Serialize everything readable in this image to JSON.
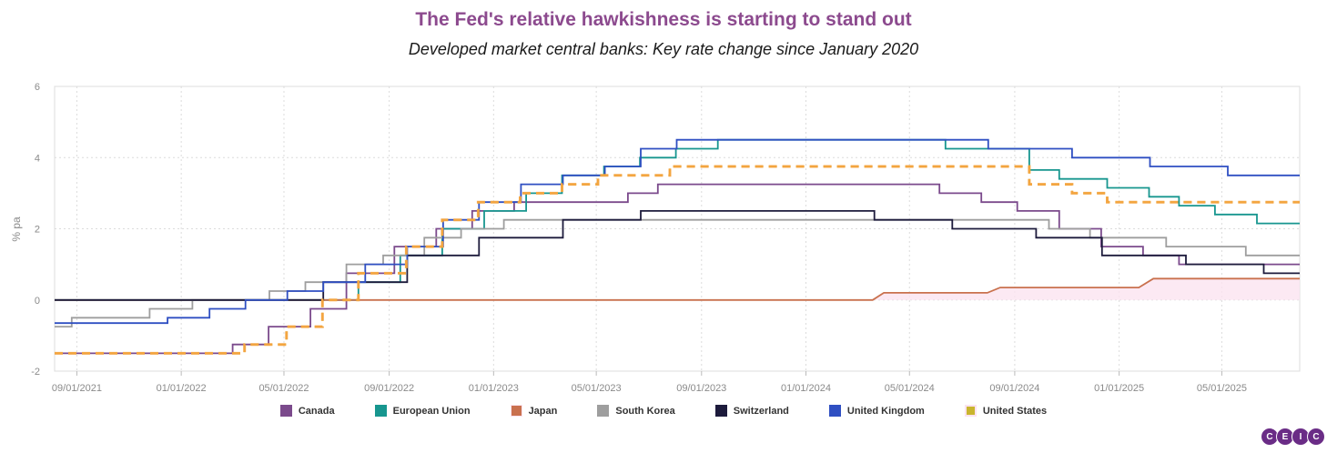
{
  "colors": {
    "title": "#8c4a8e",
    "grid": "#dcdcdc",
    "logo": "#6a2c86"
  },
  "logo": {
    "letters": [
      "C",
      "E",
      "I",
      "C"
    ]
  },
  "chart_data": {
    "type": "line",
    "title": "The Fed's relative hawkishness is starting to stand out",
    "subtitle": "Developed market central banks: Key rate change since January 2020",
    "ylabel": "% pa",
    "xlabel": "",
    "ylim": [
      -2,
      6
    ],
    "yticks": [
      -2,
      0,
      2,
      4,
      6
    ],
    "xlim": [
      "2021-08-06",
      "2025-07-31"
    ],
    "xticks": [
      "2021-09-01",
      "2022-01-01",
      "2022-05-01",
      "2022-09-01",
      "2023-01-01",
      "2023-05-01",
      "2023-09-01",
      "2024-01-01",
      "2024-05-01",
      "2024-09-01",
      "2025-01-01",
      "2025-05-01"
    ],
    "xtick_labels": [
      "09/01/2021",
      "01/01/2022",
      "05/01/2022",
      "09/01/2022",
      "01/01/2023",
      "05/01/2023",
      "09/01/2023",
      "01/01/2024",
      "05/01/2024",
      "09/01/2024",
      "01/01/2025",
      "05/01/2025"
    ],
    "grid": true,
    "legend_position": "bottom",
    "series": [
      {
        "name": "Canada",
        "color": "#7b4a8c",
        "dashed": false,
        "step": true,
        "points": [
          [
            "2021-08-06",
            -1.5
          ],
          [
            "2022-03-02",
            -1.25
          ],
          [
            "2022-04-13",
            -0.75
          ],
          [
            "2022-06-01",
            -0.25
          ],
          [
            "2022-07-13",
            0.75
          ],
          [
            "2022-09-07",
            1.5
          ],
          [
            "2022-10-26",
            2.0
          ],
          [
            "2022-12-07",
            2.5
          ],
          [
            "2023-01-25",
            2.75
          ],
          [
            "2023-06-07",
            3.0
          ],
          [
            "2023-07-12",
            3.25
          ],
          [
            "2024-06-05",
            3.0
          ],
          [
            "2024-07-24",
            2.75
          ],
          [
            "2024-09-04",
            2.5
          ],
          [
            "2024-10-23",
            2.0
          ],
          [
            "2024-12-11",
            1.5
          ],
          [
            "2025-01-29",
            1.25
          ],
          [
            "2025-03-12",
            1.0
          ],
          [
            "2025-07-31",
            1.0
          ]
        ]
      },
      {
        "name": "European Union",
        "color": "#17968f",
        "dashed": false,
        "step": true,
        "points": [
          [
            "2021-08-06",
            0
          ],
          [
            "2022-07-27",
            0.5
          ],
          [
            "2022-09-14",
            1.25
          ],
          [
            "2022-11-02",
            2.0
          ],
          [
            "2022-12-21",
            2.5
          ],
          [
            "2023-02-08",
            3.0
          ],
          [
            "2023-03-22",
            3.5
          ],
          [
            "2023-05-10",
            3.75
          ],
          [
            "2023-06-21",
            4.0
          ],
          [
            "2023-08-02",
            4.25
          ],
          [
            "2023-09-20",
            4.5
          ],
          [
            "2024-06-12",
            4.25
          ],
          [
            "2024-09-18",
            3.65
          ],
          [
            "2024-10-23",
            3.4
          ],
          [
            "2024-12-18",
            3.15
          ],
          [
            "2025-02-05",
            2.9
          ],
          [
            "2025-03-12",
            2.65
          ],
          [
            "2025-04-23",
            2.4
          ],
          [
            "2025-06-11",
            2.15
          ],
          [
            "2025-07-31",
            2.15
          ]
        ]
      },
      {
        "name": "Japan",
        "color": "#c9714e",
        "dashed": false,
        "step": false,
        "fill": "#fbe3f0",
        "points": [
          [
            "2021-08-06",
            0
          ],
          [
            "2024-03-19",
            0
          ],
          [
            "2024-04-01",
            0.2
          ],
          [
            "2024-07-31",
            0.2
          ],
          [
            "2024-08-15",
            0.35
          ],
          [
            "2025-01-24",
            0.35
          ],
          [
            "2025-02-10",
            0.6
          ],
          [
            "2025-07-31",
            0.6
          ]
        ]
      },
      {
        "name": "South Korea",
        "color": "#9e9e9e",
        "dashed": false,
        "step": true,
        "points": [
          [
            "2021-08-06",
            -0.75
          ],
          [
            "2021-08-26",
            -0.5
          ],
          [
            "2021-11-25",
            -0.25
          ],
          [
            "2022-01-14",
            0
          ],
          [
            "2022-04-14",
            0.25
          ],
          [
            "2022-05-26",
            0.5
          ],
          [
            "2022-07-13",
            1.0
          ],
          [
            "2022-08-25",
            1.25
          ],
          [
            "2022-10-12",
            1.75
          ],
          [
            "2022-11-24",
            2.0
          ],
          [
            "2023-01-13",
            2.25
          ],
          [
            "2024-10-11",
            2.0
          ],
          [
            "2024-11-28",
            1.75
          ],
          [
            "2025-02-25",
            1.5
          ],
          [
            "2025-05-29",
            1.25
          ],
          [
            "2025-07-31",
            1.25
          ]
        ]
      },
      {
        "name": "Switzerland",
        "color": "#1d1b3c",
        "dashed": false,
        "step": true,
        "points": [
          [
            "2021-08-06",
            0
          ],
          [
            "2022-06-16",
            0.5
          ],
          [
            "2022-09-22",
            1.25
          ],
          [
            "2022-12-15",
            1.75
          ],
          [
            "2023-03-23",
            2.25
          ],
          [
            "2023-06-22",
            2.5
          ],
          [
            "2024-03-21",
            2.25
          ],
          [
            "2024-06-20",
            2.0
          ],
          [
            "2024-09-26",
            1.75
          ],
          [
            "2024-12-12",
            1.25
          ],
          [
            "2025-03-20",
            1.0
          ],
          [
            "2025-06-19",
            0.75
          ],
          [
            "2025-07-31",
            0.75
          ]
        ]
      },
      {
        "name": "United Kingdom",
        "color": "#2f4fc2",
        "dashed": false,
        "step": true,
        "points": [
          [
            "2021-08-06",
            -0.65
          ],
          [
            "2021-12-16",
            -0.5
          ],
          [
            "2022-02-03",
            -0.25
          ],
          [
            "2022-03-17",
            0
          ],
          [
            "2022-05-05",
            0.25
          ],
          [
            "2022-06-16",
            0.5
          ],
          [
            "2022-08-04",
            1.0
          ],
          [
            "2022-09-22",
            1.5
          ],
          [
            "2022-11-03",
            2.25
          ],
          [
            "2022-12-15",
            2.75
          ],
          [
            "2023-02-02",
            3.25
          ],
          [
            "2023-03-23",
            3.5
          ],
          [
            "2023-05-11",
            3.75
          ],
          [
            "2023-06-22",
            4.25
          ],
          [
            "2023-08-03",
            4.5
          ],
          [
            "2024-08-01",
            4.25
          ],
          [
            "2024-11-07",
            4.0
          ],
          [
            "2025-02-06",
            3.75
          ],
          [
            "2025-05-08",
            3.5
          ],
          [
            "2025-07-31",
            3.5
          ]
        ]
      },
      {
        "name": "United States",
        "color": "#c9b52e",
        "dashed": true,
        "step": true,
        "points": [
          [
            "2021-08-06",
            -1.5
          ],
          [
            "2022-03-16",
            -1.25
          ],
          [
            "2022-05-04",
            -0.75
          ],
          [
            "2022-06-15",
            0
          ],
          [
            "2022-07-27",
            0.75
          ],
          [
            "2022-09-21",
            1.5
          ],
          [
            "2022-11-02",
            2.25
          ],
          [
            "2022-12-14",
            2.75
          ],
          [
            "2023-02-01",
            3.0
          ],
          [
            "2023-03-22",
            3.25
          ],
          [
            "2023-05-03",
            3.5
          ],
          [
            "2023-07-26",
            3.75
          ],
          [
            "2024-09-18",
            3.25
          ],
          [
            "2024-11-07",
            3.0
          ],
          [
            "2024-12-18",
            2.75
          ],
          [
            "2025-07-31",
            2.75
          ]
        ]
      }
    ],
    "overlay_color": "#f6a341"
  }
}
